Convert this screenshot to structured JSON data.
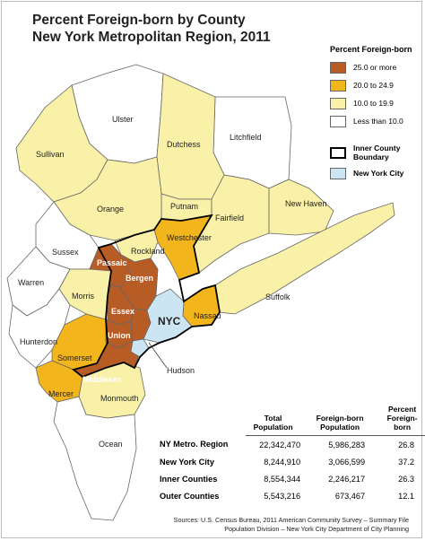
{
  "title": {
    "line1": "Percent Foreign-born by County",
    "line2": "New York Metropolitan Region, 2011"
  },
  "colors": {
    "c25": "#b85c25",
    "c20": "#f3b51c",
    "c10": "#faf1a8",
    "cLess": "#ffffff",
    "nyc": "#cbe5f3"
  },
  "legend": {
    "title": "Percent Foreign-born",
    "items": [
      "25.0 or more",
      "20.0 to 24.9",
      "10.0 to 19.9",
      "Less than 10.0"
    ],
    "boundary": "Inner County Boundary",
    "nyc": "New York City"
  },
  "counties": {
    "ulster": "Ulster",
    "litchfield": "Litchfield",
    "sullivan": "Sullivan",
    "dutchess": "Dutchess",
    "putnam": "Putnam",
    "orange": "Orange",
    "fairfield": "Fairfield",
    "new_haven": "New Haven",
    "westchester": "Westchester",
    "rockland": "Rockland",
    "sussex": "Sussex",
    "passaic": "Passaic",
    "bergen": "Bergen",
    "warren": "Warren",
    "morris": "Morris",
    "essex": "Essex",
    "suffolk": "Suffolk",
    "nassau": "Nassau",
    "nyc": "NYC",
    "union": "Union",
    "hunterdon": "Hunterdon",
    "somerset": "Somerset",
    "hudson": "Hudson",
    "middlesex": "Middlesex",
    "mercer": "Mercer",
    "monmouth": "Monmouth",
    "ocean": "Ocean"
  },
  "table": {
    "headers": [
      "Total Population",
      "Foreign-born Population",
      "Percent Foreign-born"
    ],
    "rows": [
      {
        "name": "NY Metro. Region",
        "total": "22,342,470",
        "foreign": "5,986,283",
        "pct": "26.8"
      },
      {
        "name": "New York City",
        "total": "8,244,910",
        "foreign": "3,066,599",
        "pct": "37.2"
      },
      {
        "name": "Inner Counties",
        "total": "8,554,344",
        "foreign": "2,246,217",
        "pct": "26.3"
      },
      {
        "name": "Outer Counties",
        "total": "5,543,216",
        "foreign": "673,467",
        "pct": "12.1"
      }
    ]
  },
  "source": {
    "line1": "Sources: U.S. Census Bureau, 2011 American Community Survey – Summary File",
    "line2": "Population Division – New York City Department of City Planning"
  }
}
